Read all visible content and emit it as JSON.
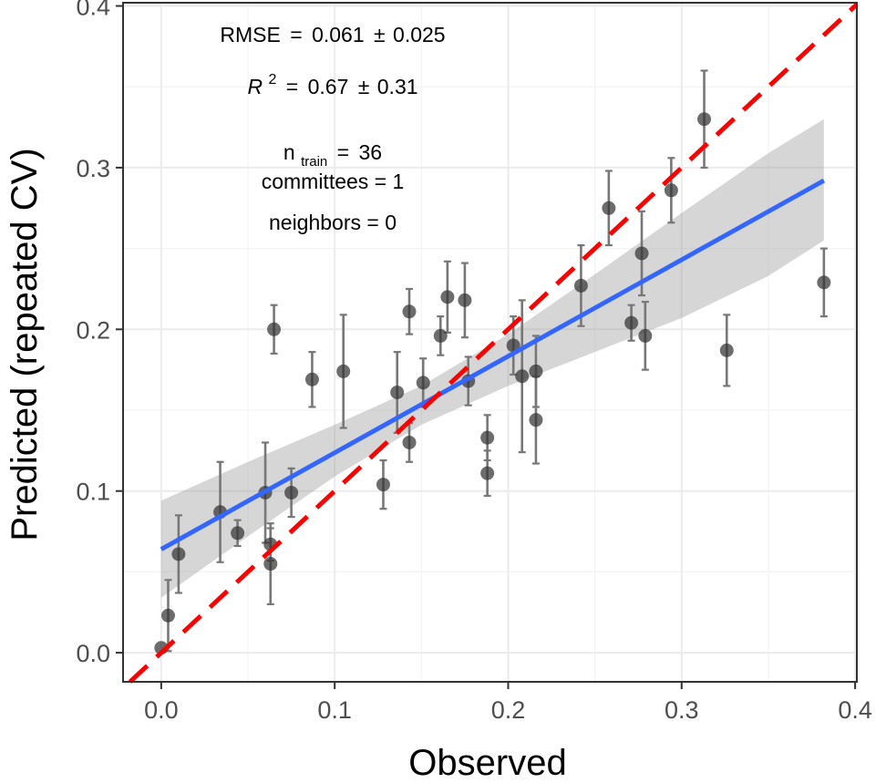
{
  "chart_data": {
    "type": "scatter",
    "xlabel": "Observed",
    "ylabel": "Predicted (repeated CV)",
    "xlim": [
      -0.022,
      0.401
    ],
    "ylim": [
      -0.018,
      0.402
    ],
    "xticks": [
      0.0,
      0.1,
      0.2,
      0.3,
      0.4
    ],
    "yticks": [
      0.0,
      0.1,
      0.2,
      0.3,
      0.4
    ],
    "xtick_labels": [
      "0.0",
      "0.1",
      "0.2",
      "0.3",
      "0.4"
    ],
    "ytick_labels": [
      "0.0",
      "0.1",
      "0.2",
      "0.3",
      "0.4"
    ],
    "grid": true,
    "points": [
      {
        "x": 0.0,
        "y": 0.003,
        "err": 0.0
      },
      {
        "x": 0.004,
        "y": 0.023,
        "err": 0.022
      },
      {
        "x": 0.01,
        "y": 0.061,
        "err": 0.024
      },
      {
        "x": 0.034,
        "y": 0.087,
        "err": 0.031
      },
      {
        "x": 0.044,
        "y": 0.074,
        "err": 0.008
      },
      {
        "x": 0.06,
        "y": 0.099,
        "err": 0.031
      },
      {
        "x": 0.063,
        "y": 0.067,
        "err": 0.01
      },
      {
        "x": 0.063,
        "y": 0.055,
        "err": 0.025
      },
      {
        "x": 0.065,
        "y": 0.2,
        "err": 0.015
      },
      {
        "x": 0.075,
        "y": 0.099,
        "err": 0.015
      },
      {
        "x": 0.087,
        "y": 0.169,
        "err": 0.017
      },
      {
        "x": 0.105,
        "y": 0.174,
        "err": 0.035
      },
      {
        "x": 0.128,
        "y": 0.104,
        "err": 0.015
      },
      {
        "x": 0.136,
        "y": 0.161,
        "err": 0.025
      },
      {
        "x": 0.143,
        "y": 0.13,
        "err": 0.012
      },
      {
        "x": 0.143,
        "y": 0.211,
        "err": 0.014
      },
      {
        "x": 0.151,
        "y": 0.167,
        "err": 0.015
      },
      {
        "x": 0.161,
        "y": 0.196,
        "err": 0.012
      },
      {
        "x": 0.165,
        "y": 0.22,
        "err": 0.022
      },
      {
        "x": 0.175,
        "y": 0.218,
        "err": 0.023
      },
      {
        "x": 0.177,
        "y": 0.168,
        "err": 0.015
      },
      {
        "x": 0.188,
        "y": 0.133,
        "err": 0.014
      },
      {
        "x": 0.188,
        "y": 0.111,
        "err": 0.014
      },
      {
        "x": 0.203,
        "y": 0.19,
        "err": 0.018
      },
      {
        "x": 0.208,
        "y": 0.171,
        "err": 0.047
      },
      {
        "x": 0.216,
        "y": 0.174,
        "err": 0.022
      },
      {
        "x": 0.216,
        "y": 0.144,
        "err": 0.027
      },
      {
        "x": 0.242,
        "y": 0.227,
        "err": 0.025
      },
      {
        "x": 0.258,
        "y": 0.275,
        "err": 0.023
      },
      {
        "x": 0.271,
        "y": 0.204,
        "err": 0.011
      },
      {
        "x": 0.277,
        "y": 0.247,
        "err": 0.026
      },
      {
        "x": 0.279,
        "y": 0.196,
        "err": 0.021
      },
      {
        "x": 0.294,
        "y": 0.286,
        "err": 0.02
      },
      {
        "x": 0.313,
        "y": 0.33,
        "err": 0.03
      },
      {
        "x": 0.326,
        "y": 0.187,
        "err": 0.022
      },
      {
        "x": 0.382,
        "y": 0.229,
        "err": 0.021
      }
    ],
    "fit_line": {
      "x": [
        0.0,
        0.382
      ],
      "y": [
        0.064,
        0.292
      ],
      "color": "#3366ff"
    },
    "fit_band": {
      "x": [
        0.0,
        0.05,
        0.1,
        0.15,
        0.2,
        0.25,
        0.3,
        0.35,
        0.382
      ],
      "lower": [
        0.034,
        0.072,
        0.109,
        0.141,
        0.165,
        0.186,
        0.207,
        0.233,
        0.255
      ],
      "upper": [
        0.094,
        0.118,
        0.141,
        0.165,
        0.197,
        0.234,
        0.272,
        0.309,
        0.33
      ]
    },
    "identity_line": {
      "color": "#ff0000",
      "style": "dashed"
    },
    "colors": {
      "points": "#333333",
      "errorbars": "#777777",
      "band": "#999999",
      "grid": "#ebebeb",
      "panel_border": "#333333"
    },
    "annotations": {
      "rmse_label": "RMSE",
      "rmse_value": "0.061",
      "rmse_err": "0.025",
      "r2_label": "R",
      "r2_sup": "2",
      "r2_value": "0.67",
      "r2_err": "0.31",
      "eq": "=",
      "pm": "±",
      "ntrain_label": "n",
      "ntrain_sub": "train",
      "ntrain_value": "36",
      "committees": "committees = 1",
      "neighbors": "neighbors = 0"
    }
  }
}
